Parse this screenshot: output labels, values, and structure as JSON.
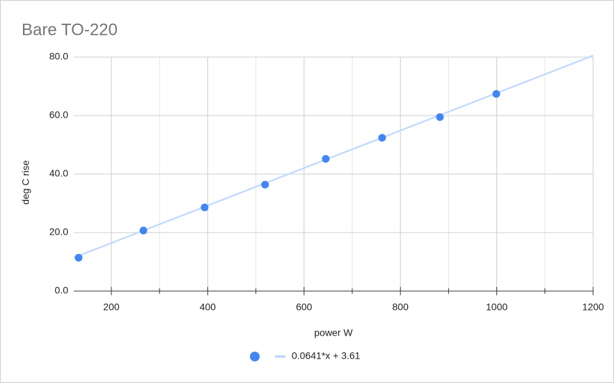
{
  "chart_data": {
    "type": "scatter",
    "title": "Bare TO-220",
    "x_label": "power W",
    "y_label": "deg C rise",
    "x": [
      132,
      266.5,
      393.6,
      519,
      645,
      762,
      882,
      999
    ],
    "series": [
      {
        "color": "#4285f4",
        "values": [
          11.4,
          20.7,
          28.6,
          36.4,
          45.2,
          52.4,
          59.5,
          67.4
        ]
      }
    ],
    "trendline": {
      "label": "0.0641*x + 3.61",
      "slope": 0.0641,
      "intercept": 3.61,
      "color": "#c6dafc"
    },
    "xlim": [
      122,
      1200
    ],
    "xticks": [
      200,
      400,
      600,
      800,
      1000,
      1200
    ],
    "x_minor_ticks": [
      300,
      500,
      700,
      900,
      1100
    ],
    "ylim": [
      0,
      80
    ],
    "yticks": [
      {
        "value": 0,
        "label": "0.0"
      },
      {
        "value": 20,
        "label": "20.0"
      },
      {
        "value": 40,
        "label": "40.0"
      },
      {
        "value": 60,
        "label": "60.0"
      },
      {
        "value": 80,
        "label": "80.0"
      }
    ],
    "grid": true,
    "legend": "bottom"
  }
}
